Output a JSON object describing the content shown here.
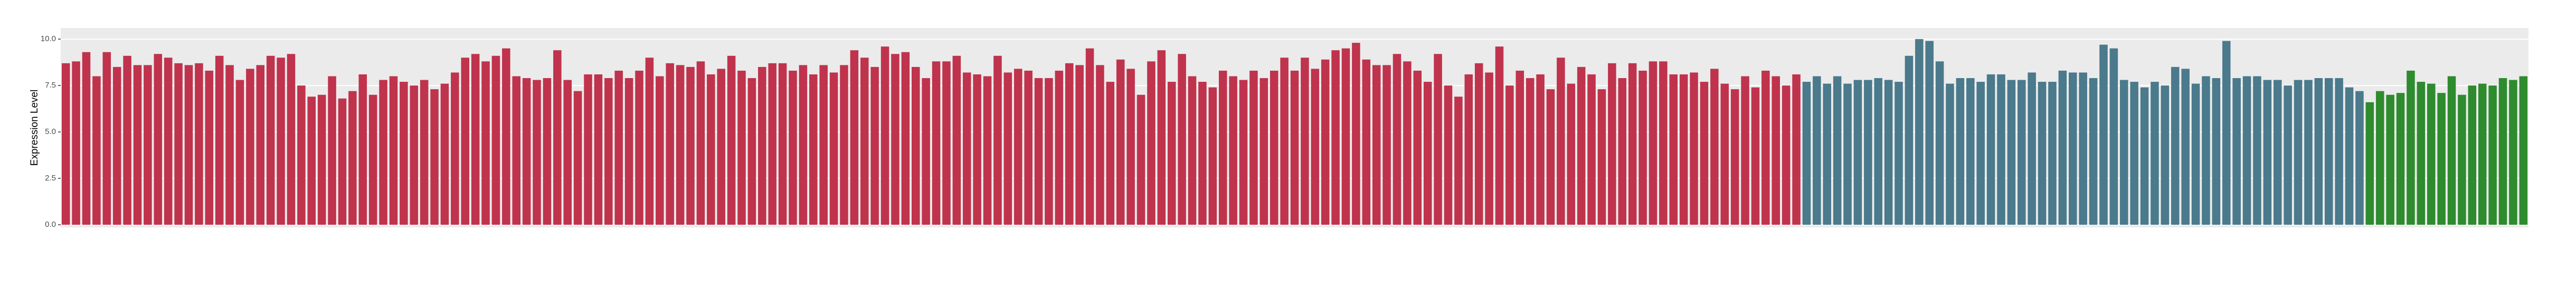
{
  "chart_data": {
    "type": "bar",
    "y_label": "Expression Level",
    "ylim": [
      0,
      10.6
    ],
    "yticks": [
      {
        "value": 0,
        "label": "0.0"
      },
      {
        "value": 2.5,
        "label": "2.5"
      },
      {
        "value": 5,
        "label": "5.0"
      },
      {
        "value": 7.5,
        "label": "7.5"
      },
      {
        "value": 10,
        "label": "10.0"
      }
    ],
    "grid": true,
    "bar_groups": [
      {
        "color": "#c0334d",
        "values": [
          8.7,
          8.8,
          9.3,
          8.0,
          9.3,
          8.5,
          9.1,
          8.6,
          8.6,
          9.2,
          9.0,
          8.7,
          8.6,
          8.7,
          8.3,
          9.1,
          8.6,
          7.8,
          8.4,
          8.6,
          9.1,
          9.0,
          9.2,
          7.5,
          6.9,
          7.0,
          8.0,
          6.8,
          7.2,
          8.1,
          7.0,
          7.8,
          8.0,
          7.7,
          7.5,
          7.8,
          7.3,
          7.6,
          8.2,
          9.0,
          9.2,
          8.8,
          9.1,
          9.5,
          8.0,
          7.9,
          7.8,
          7.9,
          9.4,
          7.8,
          7.2,
          8.1,
          8.1,
          7.9,
          8.3,
          7.9,
          8.3,
          9.0,
          8.0,
          8.7,
          8.6,
          8.5,
          8.8,
          8.1,
          8.4,
          9.1,
          8.3,
          7.9,
          8.5,
          8.7,
          8.7,
          8.3,
          8.6,
          8.1,
          8.6,
          8.2,
          8.6,
          9.4,
          9.0,
          8.5,
          9.6,
          9.2,
          9.3,
          8.5,
          7.9,
          8.8,
          8.8,
          9.1,
          8.2,
          8.1,
          8.0,
          9.1,
          8.2,
          8.4,
          8.3,
          7.9,
          7.9,
          8.3,
          8.7,
          8.6,
          9.5,
          8.6,
          7.7,
          8.9,
          8.4,
          7.0,
          8.8,
          9.4,
          7.7,
          9.2,
          8.0,
          7.7,
          7.4,
          8.3,
          8.0,
          7.8,
          8.3,
          7.9,
          8.3,
          9.0,
          8.3,
          9.0,
          8.4,
          8.9,
          9.4,
          9.5,
          9.8,
          8.9,
          8.6,
          8.6,
          9.2,
          8.8,
          8.3,
          7.7,
          9.2,
          7.5,
          6.9,
          8.1,
          8.7,
          8.2,
          9.6,
          7.5,
          8.3,
          7.9,
          8.1,
          7.3,
          9.0,
          7.6,
          8.5,
          8.1,
          7.3,
          8.7,
          7.9,
          8.7,
          8.3,
          8.8,
          8.8,
          8.1,
          8.1,
          8.2,
          7.7,
          8.4,
          7.6,
          7.3,
          8.0,
          7.4,
          8.3,
          8.0,
          7.5,
          8.1
        ]
      },
      {
        "color": "#4a7a8c",
        "values": [
          7.7,
          8.0,
          7.6,
          8.0,
          7.6,
          7.8,
          7.8,
          7.9,
          7.8,
          7.7,
          9.1,
          10.0,
          9.9,
          8.8,
          7.6,
          7.9,
          7.9,
          7.7,
          8.1,
          8.1,
          7.8,
          7.8,
          8.2,
          7.7,
          7.7,
          8.3,
          8.2,
          8.2,
          7.9,
          9.7,
          9.5,
          7.8,
          7.7,
          7.4,
          7.7,
          7.5,
          8.5,
          8.4,
          7.6,
          8.0,
          7.9,
          9.9,
          7.9,
          8.0,
          8.0,
          7.8,
          7.8,
          7.5,
          7.8,
          7.8,
          7.9,
          7.9,
          7.9,
          7.4,
          7.2
        ]
      },
      {
        "color": "#2e8b2e",
        "values": [
          6.6,
          7.2,
          7.0,
          7.1,
          8.3,
          7.7,
          7.6,
          7.1,
          8.0,
          7.0,
          7.5,
          7.6,
          7.5,
          7.9,
          7.8,
          8.0
        ]
      }
    ]
  }
}
